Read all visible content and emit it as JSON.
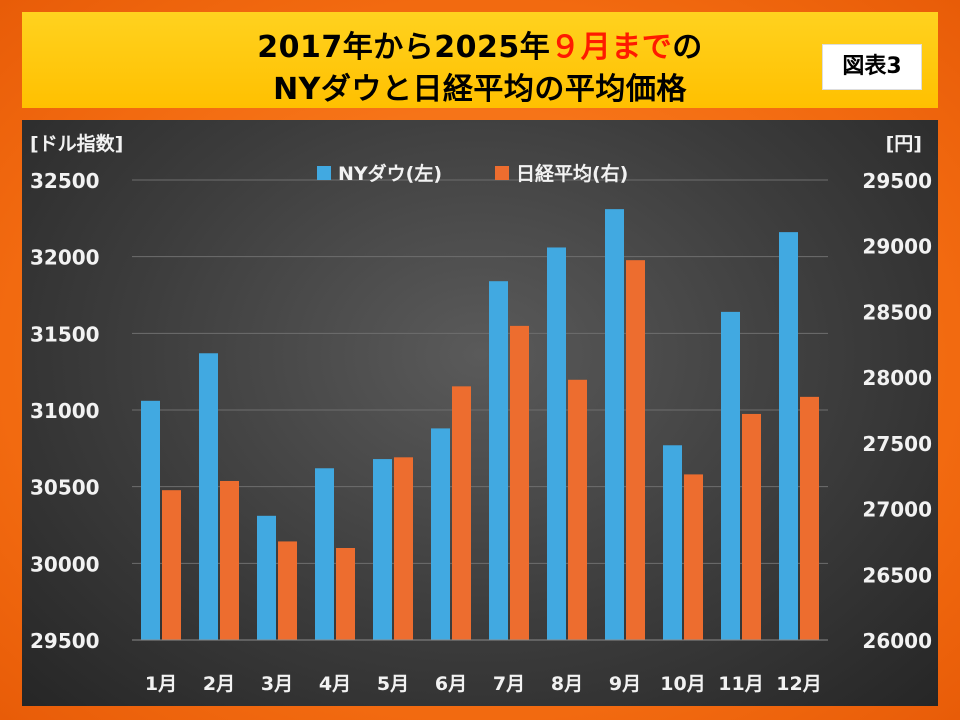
{
  "header": {
    "title_line1_a": "2017年から2025年",
    "title_line1_red": "９月まで",
    "title_line1_b": "の",
    "title_line2": "NYダウと日経平均の平均価格",
    "figure_label": "図表3"
  },
  "colors": {
    "nydow": "#41a9e1",
    "nikkei": "#ed6d2f",
    "grid": "#6e6e6e"
  },
  "chart_data": {
    "type": "bar",
    "categories": [
      "1月",
      "2月",
      "3月",
      "4月",
      "5月",
      "6月",
      "7月",
      "8月",
      "9月",
      "10月",
      "11月",
      "12月"
    ],
    "series": [
      {
        "name": "NYダウ(左)",
        "axis": "left",
        "values": [
          31060,
          31370,
          30310,
          30620,
          30680,
          30880,
          31840,
          32060,
          32310,
          30770,
          31640,
          32160
        ]
      },
      {
        "name": "日経平均(右)",
        "axis": "right",
        "values": [
          27140,
          27210,
          26750,
          26700,
          27390,
          27930,
          28390,
          27980,
          28890,
          27260,
          27720,
          27850
        ]
      }
    ],
    "left_axis": {
      "label": "[ドル指数]",
      "range": [
        29500,
        32500
      ],
      "ticks": [
        29500,
        30000,
        30500,
        31000,
        31500,
        32000,
        32500
      ]
    },
    "right_axis": {
      "label": "[円]",
      "range": [
        26000,
        29500
      ],
      "ticks": [
        26000,
        26500,
        27000,
        27500,
        28000,
        28500,
        29000,
        29500
      ]
    },
    "legend_position": "top-center",
    "grid": true
  }
}
